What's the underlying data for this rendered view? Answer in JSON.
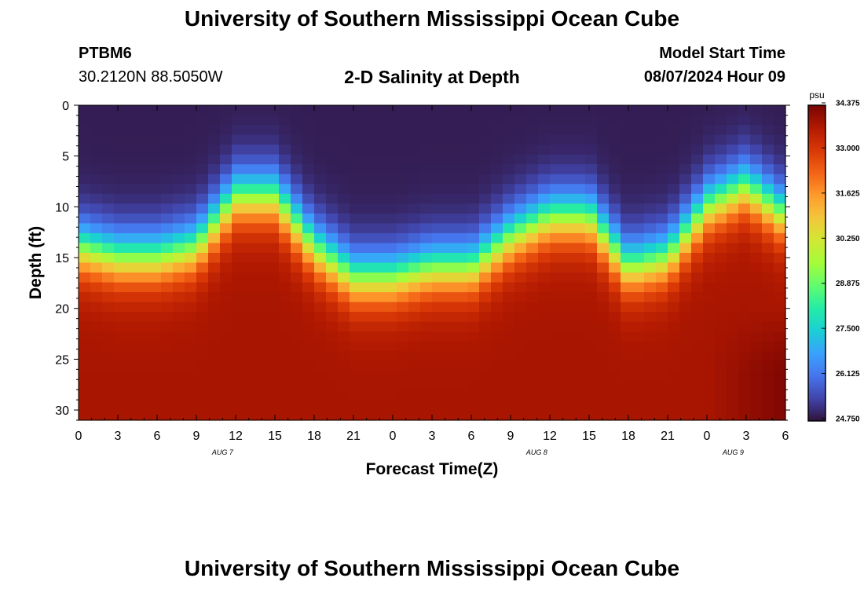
{
  "header": {
    "title": "University of Southern Mississippi Ocean Cube",
    "station": "PTBM6",
    "coords": "30.2120N  88.5050W",
    "plot_title": "2-D Salinity at Depth",
    "model_label": "Model Start Time",
    "model_time": "08/07/2024 Hour 09"
  },
  "footer": {
    "title": "University of Southern Mississippi Ocean Cube"
  },
  "chart_data": {
    "type": "heatmap",
    "title": "2-D Salinity at Depth",
    "xlabel": "Forecast Time(Z)",
    "ylabel": "Depth (ft)",
    "x_ticks": [
      "0",
      "3",
      "6",
      "9",
      "12",
      "15",
      "18",
      "21",
      "0",
      "3",
      "6",
      "9",
      "12",
      "15",
      "18",
      "21",
      "0",
      "3",
      "6"
    ],
    "date_labels": [
      {
        "label": "AUG 7",
        "hour": 11
      },
      {
        "label": "AUG 8",
        "hour": 35
      },
      {
        "label": "AUG 9",
        "hour": 50
      }
    ],
    "xlim": [
      0,
      54
    ],
    "y_ticks": [
      0,
      5,
      10,
      15,
      20,
      25,
      30
    ],
    "ylim": [
      0,
      31
    ],
    "colorbar": {
      "unit": "psu",
      "min": 24.75,
      "max": 34.375,
      "tick_labels": [
        "34.375",
        "33.000",
        "31.625",
        "30.250",
        "28.875",
        "27.500",
        "26.125",
        "24.750"
      ],
      "colors": [
        "#30123b",
        "#4145ab",
        "#4675ed",
        "#39a2fc",
        "#1bcfd4",
        "#24eca6",
        "#61fc6c",
        "#a4fc3b",
        "#d1e834",
        "#f3c63a",
        "#fe9b2d",
        "#f36315",
        "#d93806",
        "#b11901",
        "#7a0403"
      ]
    },
    "halocline_depth_ft": {
      "hours": [
        0,
        3,
        6,
        9,
        12,
        15,
        18,
        21,
        24,
        27,
        30,
        33,
        36,
        39,
        42,
        45,
        48,
        51,
        54
      ],
      "depth": [
        14,
        15,
        15,
        14,
        9,
        9,
        14,
        17,
        17,
        16,
        16,
        13,
        11,
        11,
        16,
        15,
        10,
        8,
        11
      ]
    },
    "salinity_psu": {
      "surface": 24.9,
      "bottom": 33.8,
      "bottom_max": 34.3
    }
  }
}
